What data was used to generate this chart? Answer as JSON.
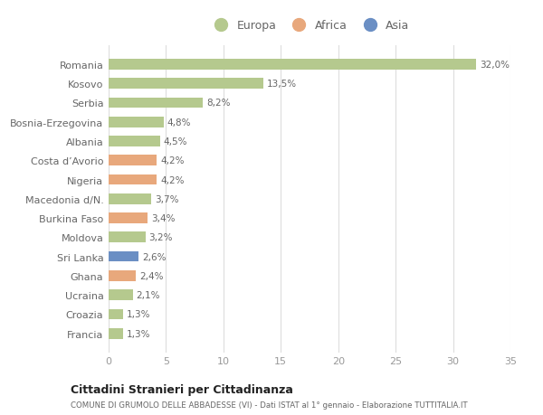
{
  "categories": [
    "Francia",
    "Croazia",
    "Ucraina",
    "Ghana",
    "Sri Lanka",
    "Moldova",
    "Burkina Faso",
    "Macedonia d/N.",
    "Nigeria",
    "Costa d’Avorio",
    "Albania",
    "Bosnia-Erzegovina",
    "Serbia",
    "Kosovo",
    "Romania"
  ],
  "values": [
    1.3,
    1.3,
    2.1,
    2.4,
    2.6,
    3.2,
    3.4,
    3.7,
    4.2,
    4.2,
    4.5,
    4.8,
    8.2,
    13.5,
    32.0
  ],
  "labels": [
    "1,3%",
    "1,3%",
    "2,1%",
    "2,4%",
    "2,6%",
    "3,2%",
    "3,4%",
    "3,7%",
    "4,2%",
    "4,2%",
    "4,5%",
    "4,8%",
    "8,2%",
    "13,5%",
    "32,0%"
  ],
  "continent": [
    "Europa",
    "Europa",
    "Europa",
    "Africa",
    "Asia",
    "Europa",
    "Africa",
    "Europa",
    "Africa",
    "Africa",
    "Europa",
    "Europa",
    "Europa",
    "Europa",
    "Europa"
  ],
  "color_europa": "#b5c98e",
  "color_africa": "#e8a87c",
  "color_asia": "#6b8fc4",
  "bg_color": "#ffffff",
  "title": "Cittadini Stranieri per Cittadinanza",
  "subtitle": "COMUNE DI GRUMOLO DELLE ABBADESSE (VI) - Dati ISTAT al 1° gennaio - Elaborazione TUTTITALIA.IT",
  "xlim": [
    0,
    35
  ],
  "xticks": [
    0,
    5,
    10,
    15,
    20,
    25,
    30,
    35
  ],
  "bar_height": 0.55
}
